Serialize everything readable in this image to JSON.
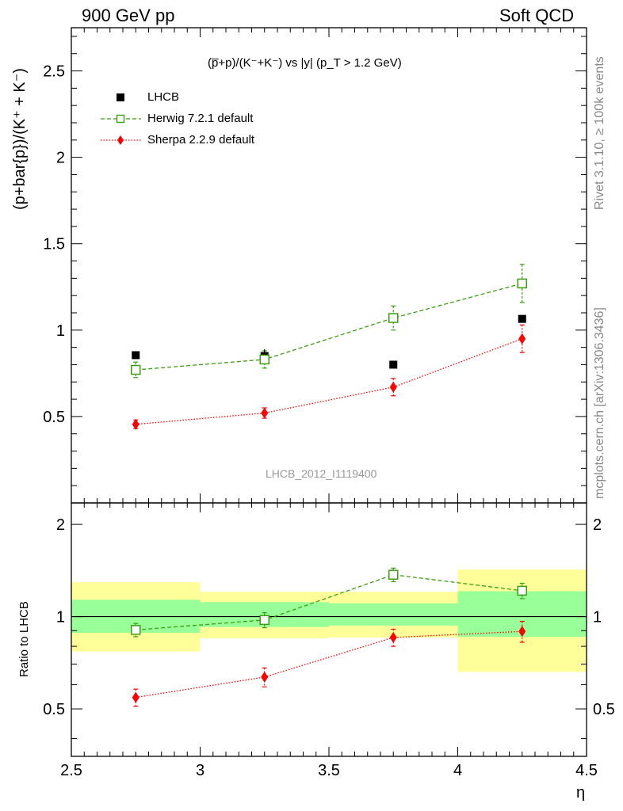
{
  "header": {
    "left": "900 GeV pp",
    "right": "Soft QCD"
  },
  "side_labels": {
    "rivet": "Rivet 3.1.10, ≥ 100k events",
    "mcplots": "mcplots.cern.ch [arXiv:1306.3436]"
  },
  "chart_data": [
    {
      "type": "scatter",
      "panel": "main",
      "title": "(p̅+p)/(K⁻+K⁻) vs |y| (p_T > 1.2 GeV)",
      "ylabel": "(p+bar{p})/(K⁺ + K⁻)",
      "xlabel": "",
      "watermark": "LHCB_2012_I1119400",
      "xlim": [
        2.5,
        4.5
      ],
      "ylim": [
        0,
        2.75
      ],
      "yticks": [
        0.5,
        1,
        1.5,
        2,
        2.5
      ],
      "ytick_labels": [
        "0.5",
        "1",
        "1.5",
        "2",
        "2.5"
      ],
      "legend_position": "top-left",
      "x": [
        2.75,
        3.25,
        3.75,
        4.25
      ],
      "series": [
        {
          "name": "LHCB",
          "style": "data",
          "color": "#000000",
          "values": [
            0.855,
            0.85,
            0.8,
            1.065
          ],
          "errors": [
            0.0,
            0.04,
            0.0,
            0.0
          ]
        },
        {
          "name": "Herwig 7.2.1 default",
          "style": "open-square-dashed",
          "color": "#3b9e12",
          "values": [
            0.77,
            0.83,
            1.07,
            1.27
          ],
          "errors": [
            0.045,
            0.05,
            0.07,
            0.11
          ]
        },
        {
          "name": "Sherpa 2.2.9 default",
          "style": "diamond-dotted",
          "color": "#ff0000",
          "values": [
            0.455,
            0.52,
            0.67,
            0.95
          ],
          "errors": [
            0.025,
            0.03,
            0.05,
            0.08
          ]
        }
      ]
    },
    {
      "type": "scatter",
      "panel": "ratio",
      "ylabel": "Ratio to LHCB",
      "xlabel": "η",
      "xlim": [
        2.5,
        4.5
      ],
      "ylim": [
        0.35,
        2.35
      ],
      "log_scale_y": true,
      "xticks": [
        2.5,
        3,
        3.5,
        4,
        4.5
      ],
      "xtick_labels": [
        "2.5",
        "3",
        "3.5",
        "4",
        "4.5"
      ],
      "yticks": [
        0.5,
        1,
        2
      ],
      "ytick_labels": [
        "0.5",
        "1",
        "2"
      ],
      "x": [
        2.75,
        3.25,
        3.75,
        4.25
      ],
      "bins": [
        [
          2.5,
          3.0
        ],
        [
          3.0,
          3.5
        ],
        [
          3.5,
          4.0
        ],
        [
          4.0,
          4.5
        ]
      ],
      "bands": {
        "inner_color": "#99ff99",
        "outer_color": "#ffff99",
        "inner": [
          [
            0.885,
            1.135
          ],
          [
            0.925,
            1.115
          ],
          [
            0.935,
            1.105
          ],
          [
            0.86,
            1.21
          ]
        ],
        "outer": [
          [
            0.77,
            1.295
          ],
          [
            0.85,
            1.205
          ],
          [
            0.855,
            1.205
          ],
          [
            0.66,
            1.425
          ]
        ]
      },
      "series": [
        {
          "name": "Herwig 7.2.1 default",
          "color": "#3b9e12",
          "values": [
            0.905,
            0.975,
            1.37,
            1.215
          ],
          "errors": [
            0.045,
            0.055,
            0.07,
            0.07
          ]
        },
        {
          "name": "Sherpa 2.2.9 default",
          "color": "#ff0000",
          "values": [
            0.545,
            0.635,
            0.855,
            0.895
          ],
          "errors": [
            0.035,
            0.045,
            0.055,
            0.07
          ]
        }
      ]
    }
  ]
}
